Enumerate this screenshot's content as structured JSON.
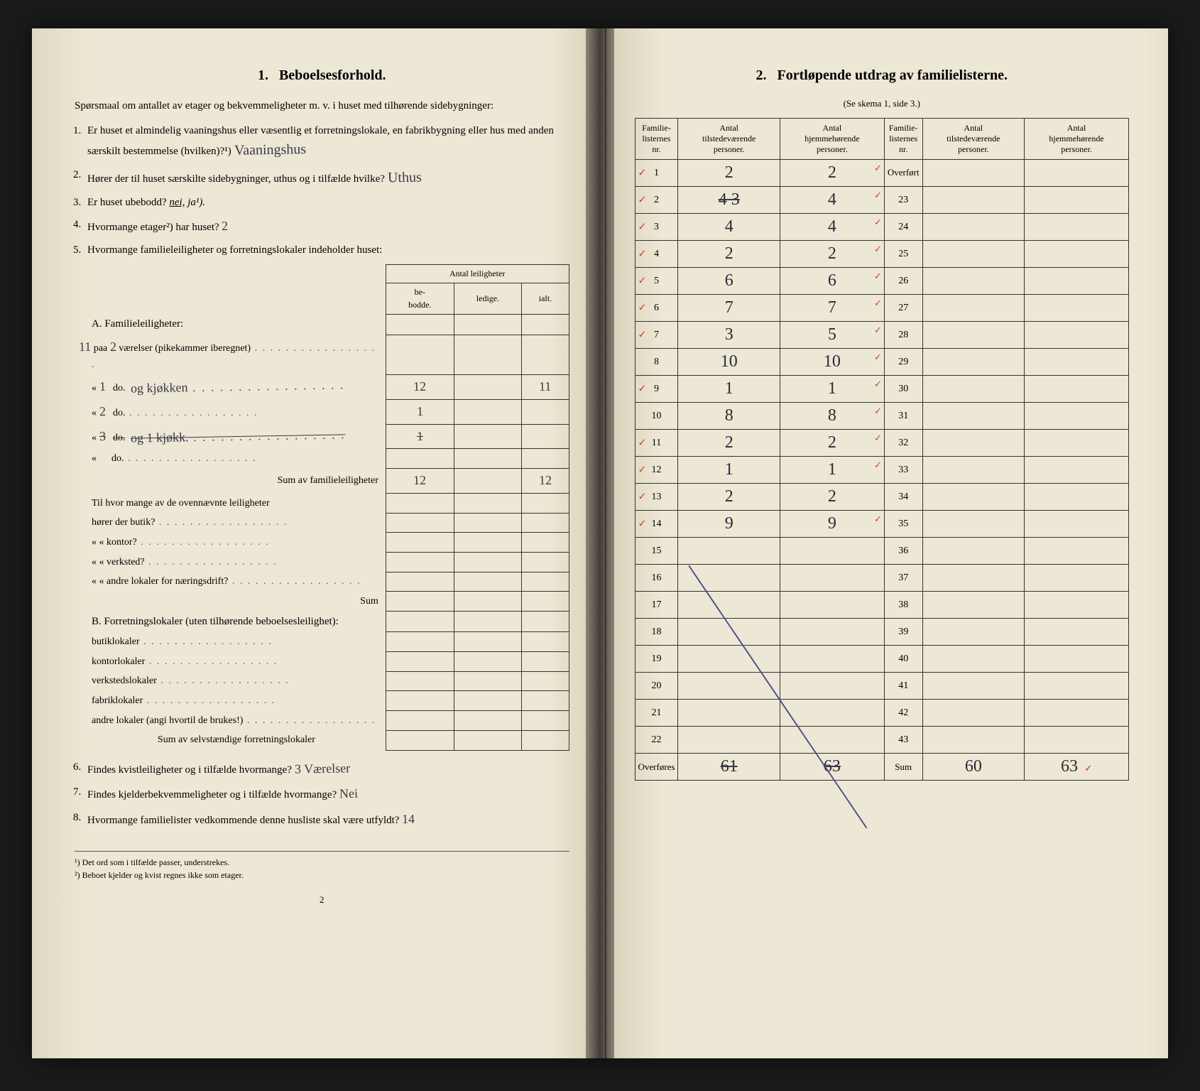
{
  "left": {
    "section_num": "1.",
    "section_title": "Beboelsesforhold.",
    "intro": "Spørsmaal om antallet av etager og bekvemmeligheter m. v. i huset med tilhørende sidebygninger:",
    "q1_num": "1.",
    "q1": "Er huset et almindelig vaaningshus eller væsentlig et forretningslokale, en fabrikbygning eller hus med anden særskilt bestemmelse (hvilken)?¹)",
    "q1_ans": "Vaaningshus",
    "q2_num": "2.",
    "q2": "Hører der til huset særskilte sidebygninger, uthus og i tilfælde hvilke?",
    "q2_ans": "Uthus",
    "q3_num": "3.",
    "q3a": "Er huset ubebodd?  ",
    "q3_nei": "nei,",
    "q3_ja": " ja¹).",
    "q4_num": "4.",
    "q4": "Hvormange etager²) har huset?",
    "q4_ans": "2",
    "q5_num": "5.",
    "q5": "Hvormange familieleiligheter og forretningslokaler indeholder huset:",
    "tbl_head": "Antal leiligheter",
    "tbl_h1": "be-\nbodde.",
    "tbl_h2": "ledige.",
    "tbl_h3": "ialt.",
    "secA": "A. Familieleiligheter:",
    "rA1_pre": "paa",
    "rA1_val": "2",
    "rA1_post": "værelser (pikekammer iberegnet)",
    "rA2_a": "«",
    "rA2_hw1": "1",
    "rA2_do": "do.",
    "rA2_hw2": "og kjøkken",
    "rA2_b": "12",
    "rA2_c": "11",
    "rA3_hw1": "2",
    "rA3_b": "1",
    "rA4_hw1": "3",
    "rA4_hw2": "og 1 kjøkk.",
    "rA4_b": "1",
    "sumA": "Sum av familieleiligheter",
    "sumA_b": "12",
    "sumA_c": "12",
    "mid1": "Til hvor mange av de ovennævnte leiligheter",
    "mid1b": "hører der butik?",
    "mid2": "«     «  kontor?",
    "mid3": "«     «  verksted?",
    "mid4": "«     «  andre lokaler for næringsdrift?",
    "sumMid": "Sum",
    "secB": "B. Forretningslokaler (uten tilhørende beboelsesleilighet):",
    "rb1": "butiklokaler",
    "rb2": "kontorlokaler",
    "rb3": "verkstedslokaler",
    "rb4": "fabriklokaler",
    "rb5": "andre lokaler (angi hvortil de brukes!)",
    "sumB": "Sum av selvstændige forretningslokaler",
    "q6_num": "6.",
    "q6": "Findes kvistleiligheter og i tilfælde hvormange?",
    "q6_ans": "3 Værelser",
    "q7_num": "7.",
    "q7": "Findes kjelderbekvemmeligheter og i tilfælde hvormange?",
    "q7_ans": "Nei",
    "q8_num": "8.",
    "q8": "Hvormange familielister vedkommende denne husliste skal være utfyldt?",
    "q8_ans": "14",
    "fn1": "¹)  Det ord som i tilfælde passer, understrekes.",
    "fn2": "²)  Beboet kjelder og kvist regnes ikke som etager.",
    "pagenum": "2"
  },
  "right": {
    "section_num": "2.",
    "section_title": "Fortløpende utdrag av familielisterne.",
    "subtitle": "(Se skema 1, side 3.)",
    "h1": "Familie-\nlisternes\nnr.",
    "h2": "Antal\ntilstedeværende\npersoner.",
    "h3": "Antal\nhjemmehørende\npersoner.",
    "h4": "Familie-\nlisternes\nnr.",
    "h5": "Antal\ntilstedeværende\npersoner.",
    "h6": "Antal\nhjemmehørende\npersoner.",
    "rows_left": [
      {
        "n": "1",
        "a": "2",
        "b": "2",
        "tick": true,
        "rtick": true
      },
      {
        "n": "2",
        "a": "4 3",
        "b": "4",
        "tick": true,
        "rtick": true,
        "strike_a": true
      },
      {
        "n": "3",
        "a": "4",
        "b": "4",
        "tick": true,
        "rtick": true
      },
      {
        "n": "4",
        "a": "2",
        "b": "2",
        "tick": true,
        "rtick": true
      },
      {
        "n": "5",
        "a": "6",
        "b": "6",
        "tick": true,
        "rtick": true
      },
      {
        "n": "6",
        "a": "7",
        "b": "7",
        "tick": true,
        "rtick": true
      },
      {
        "n": "7",
        "a": "3",
        "b": "5",
        "tick": true,
        "rtick": true
      },
      {
        "n": "8",
        "a": "10",
        "b": "10",
        "tick": false,
        "rtick": true
      },
      {
        "n": "9",
        "a": "1",
        "b": "1",
        "tick": true,
        "rtick": true
      },
      {
        "n": "10",
        "a": "8",
        "b": "8",
        "tick": false,
        "rtick": true
      },
      {
        "n": "11",
        "a": "2",
        "b": "2",
        "tick": true,
        "rtick": true
      },
      {
        "n": "12",
        "a": "1",
        "b": "1",
        "tick": true,
        "rtick": true
      },
      {
        "n": "13",
        "a": "2",
        "b": "2",
        "tick": true,
        "rtick": false
      },
      {
        "n": "14",
        "a": "9",
        "b": "9",
        "tick": true,
        "rtick": true
      },
      {
        "n": "15",
        "a": "",
        "b": "",
        "tick": false
      },
      {
        "n": "16",
        "a": "",
        "b": "",
        "tick": false
      },
      {
        "n": "17",
        "a": "",
        "b": "",
        "tick": false
      },
      {
        "n": "18",
        "a": "",
        "b": "",
        "tick": false
      },
      {
        "n": "19",
        "a": "",
        "b": "",
        "tick": false
      },
      {
        "n": "20",
        "a": "",
        "b": "",
        "tick": false
      },
      {
        "n": "21",
        "a": "",
        "b": "",
        "tick": false
      },
      {
        "n": "22",
        "a": "",
        "b": "",
        "tick": false
      }
    ],
    "rows_right_first": "Overført",
    "rows_right": [
      "23",
      "24",
      "25",
      "26",
      "27",
      "28",
      "29",
      "30",
      "31",
      "32",
      "33",
      "34",
      "35",
      "36",
      "37",
      "38",
      "39",
      "40",
      "41",
      "42",
      "43"
    ],
    "overfores": "Overføres",
    "sum_label": "Sum",
    "sum_a": "61",
    "sum_b": "63",
    "sum_c": "60",
    "sum_d": "63",
    "sum_tick": "✓"
  },
  "colors": {
    "ink": "#2a2a2a",
    "hand": "#3a3a4a",
    "red": "#c9432f",
    "paper": "#ede7d5",
    "border": "#333333"
  }
}
